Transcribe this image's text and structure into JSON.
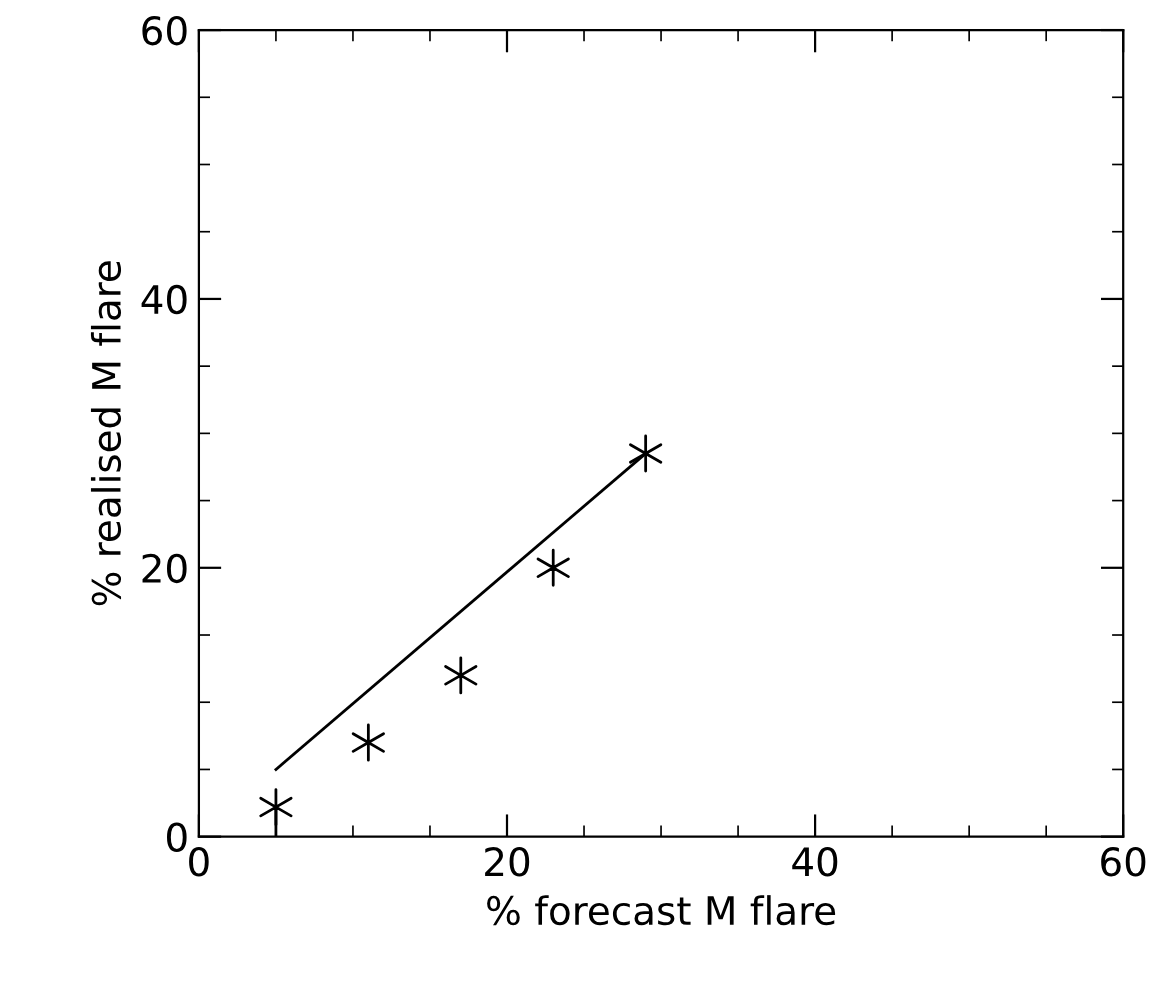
{
  "chart_data": {
    "type": "scatter",
    "xlabel": "% forecast M flare",
    "ylabel": "% realised M flare",
    "xlim": [
      0,
      60
    ],
    "ylim": [
      0,
      60
    ],
    "xticks": [
      0,
      20,
      40,
      60
    ],
    "yticks": [
      0,
      20,
      40,
      60
    ],
    "grid": false,
    "legend": false,
    "series": [
      {
        "color": "#000000",
        "marker": "cross",
        "x": [
          5,
          11,
          17,
          23,
          29
        ],
        "values": [
          2.2,
          7,
          12,
          20,
          28.5
        ],
        "errors": [
          [
            0,
            2.2
          ],
          null,
          null,
          null,
          null
        ]
      },
      {
        "type": "line",
        "color": "#000000",
        "marker": "none",
        "line_style": "solid",
        "x": [
          5,
          29
        ],
        "values": [
          5,
          28.5
        ]
      }
    ]
  }
}
